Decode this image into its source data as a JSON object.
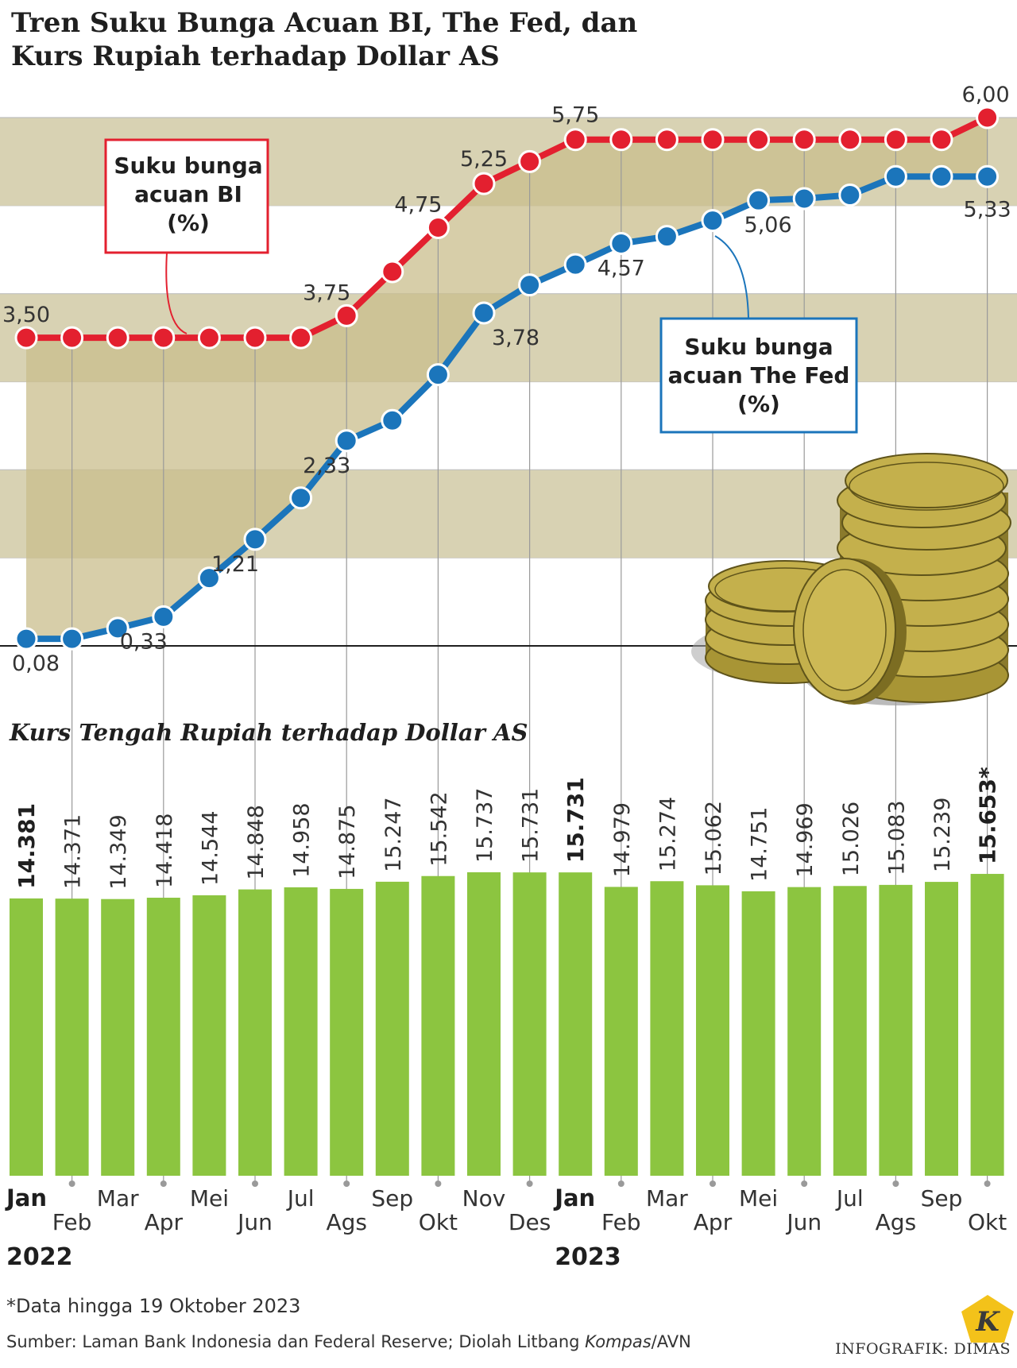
{
  "title_line1": "Tren Suku Bunga Acuan BI, The Fed, dan",
  "title_line2": "Kurs Rupiah terhadap Dollar AS",
  "legend_bi": [
    "Suku bunga",
    "acuan BI",
    "(%)"
  ],
  "legend_fed": [
    "Suku bunga",
    "acuan The Fed",
    "(%)"
  ],
  "bar_title": "Kurs Tengah Rupiah terhadap Dollar AS",
  "footnote": "*Data hingga 19 Oktober 2023",
  "source": "Sumber: Laman Bank Indonesia dan Federal Reserve; Diolah Litbang ",
  "source_italic": "Kompas",
  "source_tail": "/AVN",
  "credit": "INFOGRAFIK: DIMAS",
  "logo_letter": "K",
  "colors": {
    "bi": "#e3202f",
    "fed": "#1b75bb",
    "bar": "#8cc540",
    "band": "#d8d2b3",
    "fill": "#c9bd8c"
  },
  "chart_data": [
    {
      "type": "line",
      "x": [
        "Jan",
        "Feb",
        "Mar",
        "Apr",
        "Mei",
        "Jun",
        "Jul",
        "Ags",
        "Sep",
        "Okt",
        "Nov",
        "Des",
        "Jan",
        "Feb",
        "Mar",
        "Apr",
        "Mei",
        "Jun",
        "Jul",
        "Ags",
        "Sep",
        "Okt"
      ],
      "years": [
        {
          "label": "2022",
          "index": 0
        },
        {
          "label": "2023",
          "index": 12
        }
      ],
      "series": [
        {
          "name": "Suku bunga acuan BI (%)",
          "values": [
            3.5,
            3.5,
            3.5,
            3.5,
            3.5,
            3.5,
            3.5,
            3.75,
            4.25,
            4.75,
            5.25,
            5.5,
            5.75,
            5.75,
            5.75,
            5.75,
            5.75,
            5.75,
            5.75,
            5.75,
            5.75,
            6.0
          ],
          "labels": [
            {
              "index": 0,
              "text": "3,50"
            },
            {
              "index": 7,
              "text": "3,75"
            },
            {
              "index": 9,
              "text": "4,75"
            },
            {
              "index": 10,
              "text": "5,25"
            },
            {
              "index": 12,
              "text": "5,75"
            },
            {
              "index": 21,
              "text": "6,00"
            }
          ]
        },
        {
          "name": "Suku bunga acuan The Fed (%)",
          "values": [
            0.08,
            0.08,
            0.2,
            0.33,
            0.77,
            1.21,
            1.68,
            2.33,
            2.56,
            3.08,
            3.78,
            4.1,
            4.33,
            4.57,
            4.65,
            4.83,
            5.06,
            5.08,
            5.12,
            5.33,
            5.33,
            5.33
          ],
          "labels": [
            {
              "index": 0,
              "text": "0,08"
            },
            {
              "index": 3,
              "text": "0,33"
            },
            {
              "index": 5,
              "text": "1,21"
            },
            {
              "index": 7,
              "text": "2,33"
            },
            {
              "index": 10,
              "text": "3,78"
            },
            {
              "index": 13,
              "text": "4,57"
            },
            {
              "index": 16,
              "text": "5,06"
            },
            {
              "index": 21,
              "text": "5,33"
            }
          ]
        }
      ],
      "ylim": [
        0,
        6.0
      ],
      "grid": true
    },
    {
      "type": "bar",
      "title": "Kurs Tengah Rupiah terhadap Dollar AS",
      "categories": [
        "Jan",
        "Feb",
        "Mar",
        "Apr",
        "Mei",
        "Jun",
        "Jul",
        "Ags",
        "Sep",
        "Okt",
        "Nov",
        "Des",
        "Jan",
        "Feb",
        "Mar",
        "Apr",
        "Mei",
        "Jun",
        "Jul",
        "Ags",
        "Sep",
        "Okt"
      ],
      "values": [
        14381,
        14371,
        14349,
        14418,
        14544,
        14848,
        14958,
        14875,
        15247,
        15542,
        15737,
        15731,
        15731,
        14979,
        15274,
        15062,
        14751,
        14969,
        15026,
        15083,
        15239,
        15653
      ],
      "value_labels": [
        "14.381",
        "14.371",
        "14.349",
        "14.418",
        "14.544",
        "14.848",
        "14.958",
        "14.875",
        "15.247",
        "15.542",
        "15.737",
        "15.731",
        "15.731",
        "14.979",
        "15.274",
        "15.062",
        "14.751",
        "14.969",
        "15.026",
        "15.083",
        "15.239",
        "15.653*"
      ],
      "bold_indices": [
        0,
        12,
        21
      ]
    }
  ]
}
